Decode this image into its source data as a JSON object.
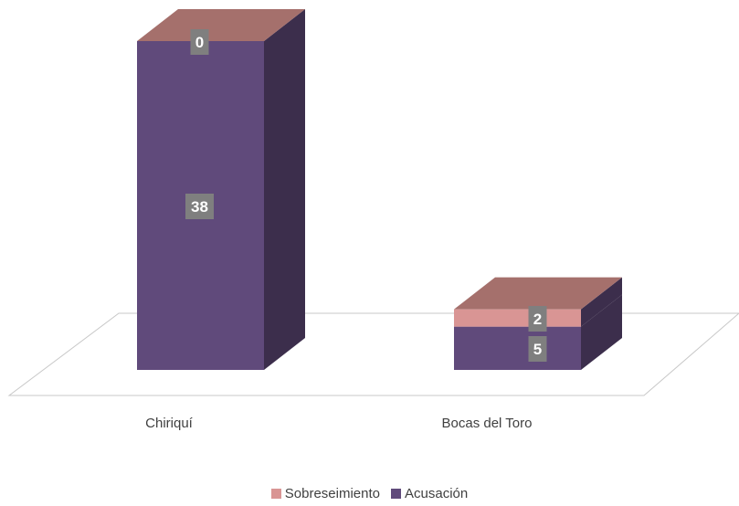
{
  "chart_data": {
    "type": "bar",
    "subtype": "stacked-3d",
    "categories": [
      "Chiriquí",
      "Bocas del Toro"
    ],
    "series": [
      {
        "name": "Acusación",
        "values": [
          38,
          5
        ],
        "color": "#604A7B",
        "label_color": "#7F7F7F"
      },
      {
        "name": "Sobreseimiento",
        "values": [
          0,
          2
        ],
        "color": "#D99594",
        "label_color": "#7F7F7F"
      }
    ],
    "legend": {
      "position": "bottom",
      "order": [
        "Sobreseimiento",
        "Acusación"
      ]
    },
    "grid": false
  }
}
